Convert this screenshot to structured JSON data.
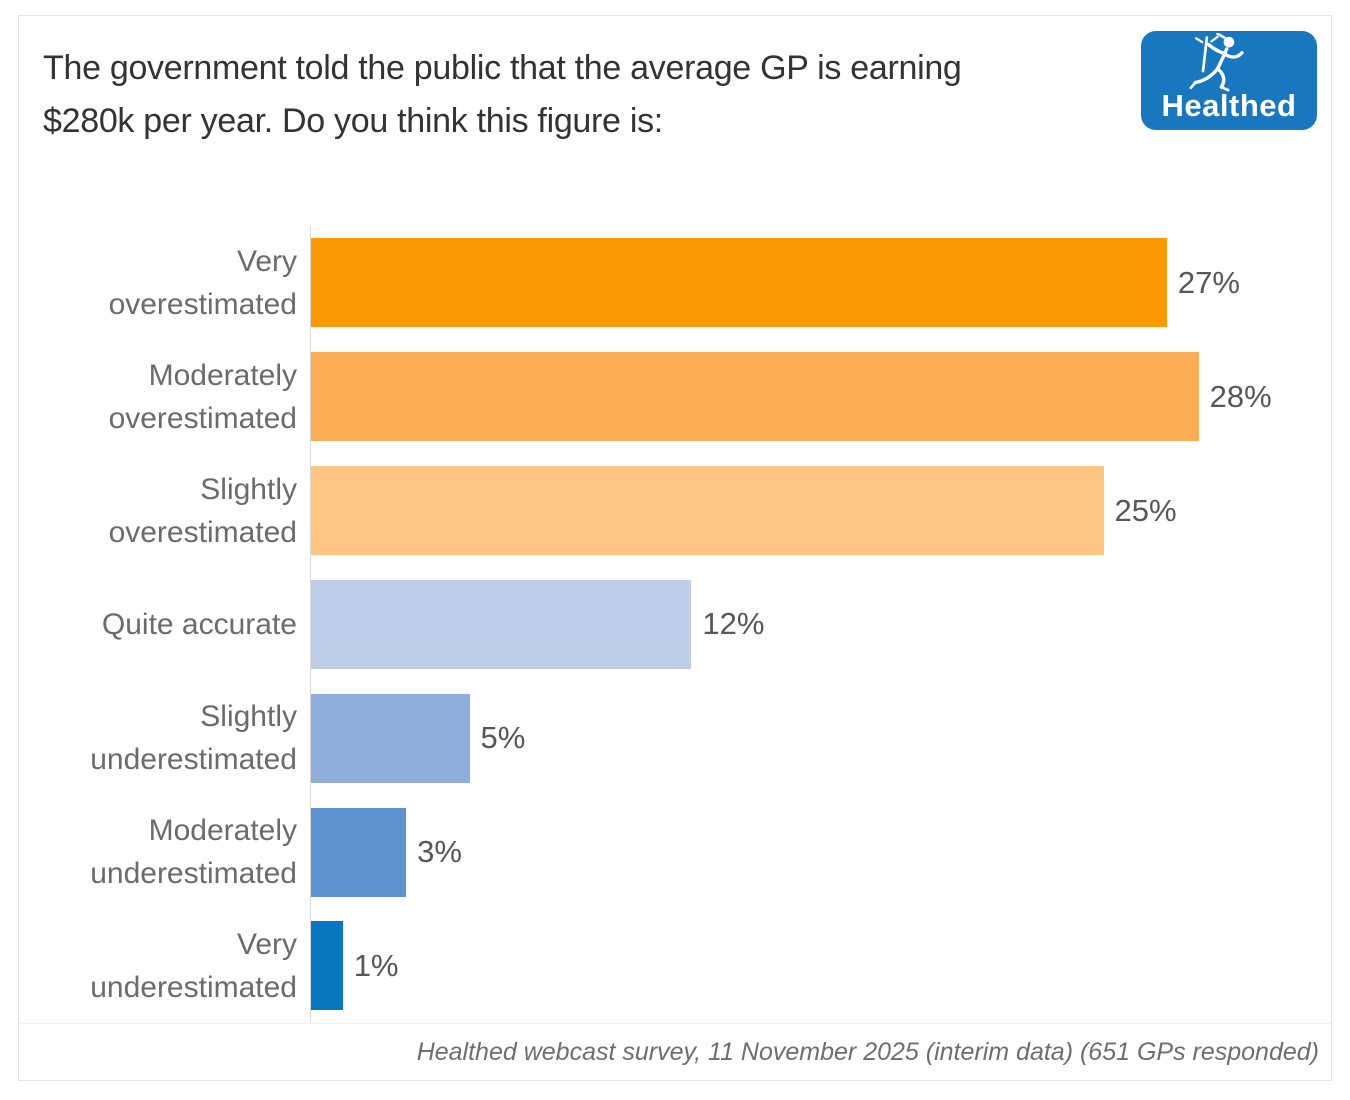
{
  "header": {
    "title": "The government told the public that the average GP is earning $280k per year. Do you think this figure is:",
    "logo_text": "Healthed"
  },
  "chart_data": {
    "type": "bar",
    "orientation": "horizontal",
    "title": "The government told the public that the average GP is earning $280k per year. Do you think this figure is:",
    "categories": [
      "Very overestimated",
      "Moderately overestimated",
      "Slightly overestimated",
      "Quite accurate",
      "Slightly underestimated",
      "Moderately underestimated",
      "Very underestimated"
    ],
    "values": [
      27,
      28,
      25,
      12,
      5,
      3,
      1
    ],
    "data_labels": [
      "27%",
      "28%",
      "25%",
      "12%",
      "5%",
      "3%",
      "1%"
    ],
    "bar_colors": [
      "#FC9905",
      "#FCAC53",
      "#FEC583",
      "#BDCFE8",
      "#8FAEDC",
      "#5F93CF",
      "#0877C0"
    ],
    "xlabel": "",
    "ylabel": "",
    "xlim": [
      0,
      31.8
    ],
    "grid": "off",
    "legend": "none",
    "value_label_position": "outside-end"
  },
  "footer": {
    "caption": "Healthed webcast survey, 11 November 2025 (interim data) (651 GPs responded)"
  },
  "colors": {
    "logo_blue": "#1877BE",
    "axis_line": "#d9d9d9",
    "category_label_gray": "#6b6b6b",
    "value_label_gray": "#575757",
    "title_dark": "#333333"
  }
}
